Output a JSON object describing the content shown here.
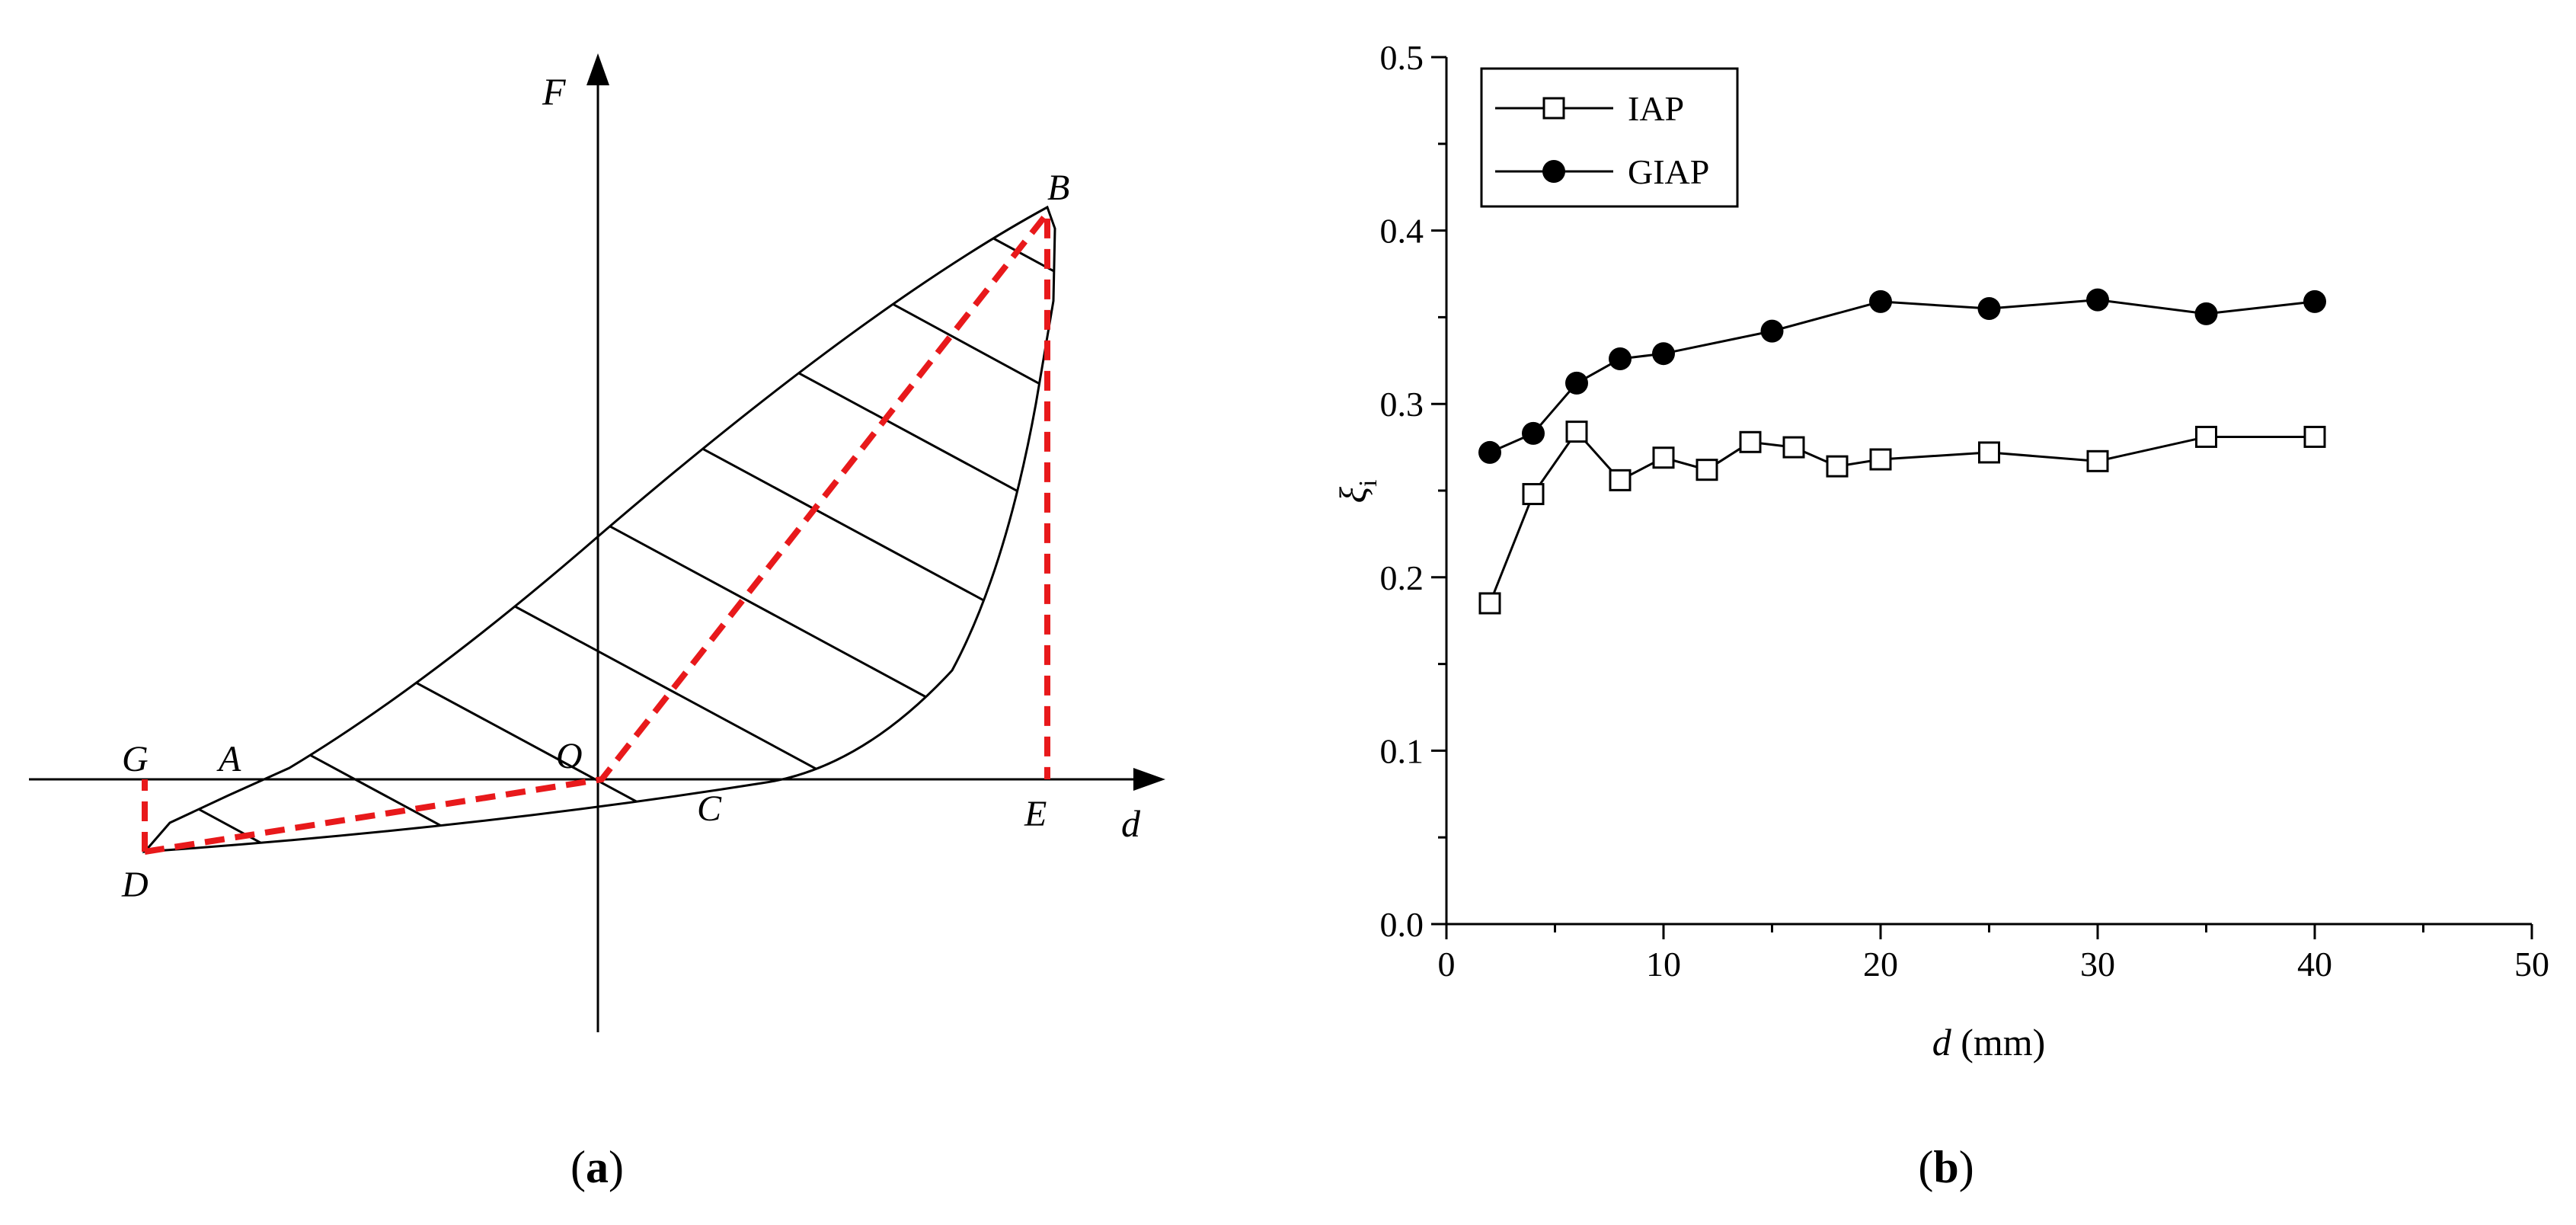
{
  "panel_a": {
    "caption_letter": "a",
    "axis_labels": {
      "vertical": "F",
      "horizontal": "d"
    },
    "points": [
      {
        "id": "G",
        "label": "G"
      },
      {
        "id": "A",
        "label": "A"
      },
      {
        "id": "O",
        "label": "O"
      },
      {
        "id": "C",
        "label": "C"
      },
      {
        "id": "E",
        "label": "E"
      },
      {
        "id": "B",
        "label": "B"
      },
      {
        "id": "D",
        "label": "D"
      }
    ],
    "colors": {
      "loop": "#000000",
      "dashed": "#e8191b"
    }
  },
  "panel_b": {
    "caption_letter": "b",
    "y_symbol": "ξ",
    "y_subscript": "i",
    "x_var": "d",
    "x_unit": " (mm)",
    "x_ticks": [
      "0",
      "10",
      "20",
      "30",
      "40",
      "50"
    ],
    "y_ticks": [
      "0.0",
      "0.1",
      "0.2",
      "0.3",
      "0.4",
      "0.5"
    ]
  },
  "chart_data": {
    "type": "line",
    "title": "",
    "xlabel": "d (mm)",
    "ylabel": "ξi",
    "xlim": [
      0,
      50
    ],
    "ylim": [
      0,
      0.5
    ],
    "grid": false,
    "legend_position": "top-left",
    "series": [
      {
        "name": "IAP",
        "marker": "open-square",
        "color": "#000000",
        "points": [
          [
            2,
            0.185
          ],
          [
            4,
            0.248
          ],
          [
            6,
            0.284
          ],
          [
            8,
            0.256
          ],
          [
            10,
            0.269
          ],
          [
            12,
            0.262
          ],
          [
            14,
            0.278
          ],
          [
            16,
            0.275
          ],
          [
            18,
            0.264
          ],
          [
            20,
            0.268
          ],
          [
            25,
            0.272
          ],
          [
            30,
            0.267
          ],
          [
            35,
            0.281
          ],
          [
            40,
            0.281
          ]
        ]
      },
      {
        "name": "GIAP",
        "marker": "filled-circle",
        "color": "#000000",
        "points": [
          [
            2,
            0.272
          ],
          [
            4,
            0.283
          ],
          [
            6,
            0.312
          ],
          [
            8,
            0.326
          ],
          [
            10,
            0.329
          ],
          [
            15,
            0.342
          ],
          [
            20,
            0.359
          ],
          [
            25,
            0.355
          ],
          [
            30,
            0.36
          ],
          [
            35,
            0.352
          ],
          [
            40,
            0.359
          ]
        ]
      }
    ]
  }
}
